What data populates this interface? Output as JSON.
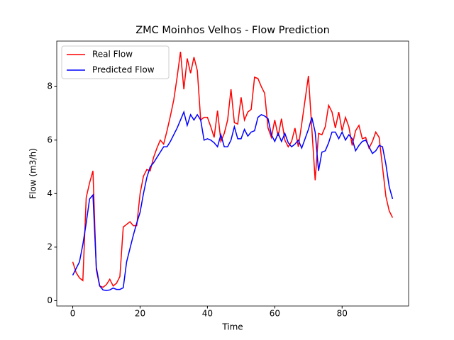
{
  "chart_data": {
    "type": "line",
    "title": "ZMC Moinhos Velhos - Flow Prediction",
    "x_label": "Time",
    "y_label": "Flow (m3/h)",
    "x": [
      0,
      1,
      2,
      3,
      4,
      5,
      6,
      7,
      8,
      9,
      10,
      11,
      12,
      13,
      14,
      15,
      16,
      17,
      18,
      19,
      20,
      21,
      22,
      23,
      24,
      25,
      26,
      27,
      28,
      29,
      30,
      31,
      32,
      33,
      34,
      35,
      36,
      37,
      38,
      39,
      40,
      41,
      42,
      43,
      44,
      45,
      46,
      47,
      48,
      49,
      50,
      51,
      52,
      53,
      54,
      55,
      56,
      57,
      58,
      59,
      60,
      61,
      62,
      63,
      64,
      65,
      66,
      67,
      68,
      69,
      70,
      71,
      72,
      73,
      74,
      75,
      76,
      77,
      78,
      79,
      80,
      81,
      82,
      83,
      84,
      85,
      86,
      87,
      88,
      89,
      90,
      91,
      92,
      93,
      94,
      95
    ],
    "series": [
      {
        "name": "Real Flow",
        "color": "#ff0000",
        "values": [
          1.45,
          1.05,
          0.85,
          0.75,
          3.85,
          4.4,
          4.85,
          1.15,
          0.55,
          0.5,
          0.6,
          0.8,
          0.55,
          0.65,
          0.9,
          2.75,
          2.85,
          2.95,
          2.8,
          2.8,
          4.0,
          4.65,
          4.9,
          4.85,
          5.35,
          5.7,
          6.0,
          5.85,
          6.35,
          6.9,
          7.5,
          8.35,
          9.3,
          7.9,
          9.05,
          8.5,
          9.1,
          8.6,
          6.75,
          6.85,
          6.85,
          6.5,
          6.1,
          7.1,
          5.95,
          6.25,
          6.75,
          7.9,
          6.65,
          6.6,
          7.6,
          6.75,
          7.05,
          7.15,
          8.35,
          8.3,
          8.0,
          7.75,
          6.45,
          6.1,
          6.75,
          6.15,
          6.8,
          6.0,
          5.75,
          5.95,
          6.45,
          5.75,
          6.6,
          7.5,
          8.4,
          6.45,
          4.5,
          6.25,
          6.2,
          6.5,
          7.3,
          7.05,
          6.45,
          7.05,
          6.35,
          6.85,
          6.5,
          5.8,
          6.35,
          6.55,
          6.05,
          6.1,
          5.7,
          5.95,
          6.3,
          6.1,
          5.0,
          3.9,
          3.35,
          3.1
        ]
      },
      {
        "name": "Predicted Flow",
        "color": "#0000ff",
        "values": [
          0.95,
          1.2,
          1.45,
          2.1,
          2.9,
          3.8,
          3.95,
          1.25,
          0.55,
          0.4,
          0.38,
          0.4,
          0.47,
          0.42,
          0.42,
          0.48,
          1.45,
          1.95,
          2.45,
          2.9,
          3.3,
          4.0,
          4.6,
          5.0,
          5.15,
          5.35,
          5.55,
          5.75,
          5.75,
          5.95,
          6.2,
          6.45,
          6.75,
          7.05,
          6.55,
          6.95,
          6.75,
          6.95,
          6.75,
          6.0,
          6.05,
          6.0,
          5.9,
          5.75,
          6.2,
          5.75,
          5.75,
          6.0,
          6.5,
          6.05,
          6.05,
          6.4,
          6.15,
          6.3,
          6.35,
          6.85,
          6.95,
          6.9,
          6.8,
          6.2,
          5.95,
          6.25,
          5.95,
          6.25,
          5.9,
          5.75,
          5.85,
          6.0,
          5.7,
          6.05,
          6.4,
          6.85,
          6.3,
          4.85,
          5.55,
          5.6,
          5.9,
          6.3,
          6.3,
          6.05,
          6.3,
          6.0,
          6.2,
          6.05,
          5.6,
          5.8,
          5.95,
          6.0,
          5.75,
          5.5,
          5.6,
          5.8,
          5.75,
          5.1,
          4.25,
          3.8
        ]
      }
    ],
    "xlim": [
      -4.75,
      99.75
    ],
    "ylim": [
      -0.2,
      9.7
    ],
    "xticks": [
      0,
      20,
      40,
      60,
      80
    ],
    "yticks": [
      0,
      2,
      4,
      6,
      8
    ],
    "legend": "upper left"
  }
}
